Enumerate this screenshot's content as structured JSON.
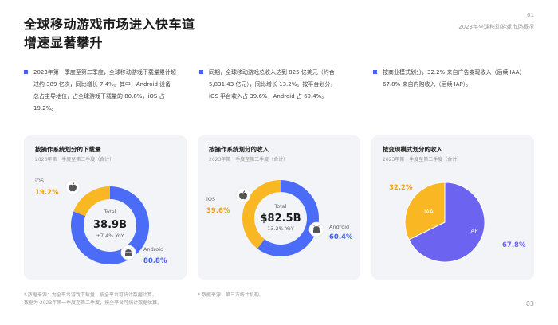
{
  "header": {
    "title_line1": "全球移动游戏市场进入快车道",
    "title_line2": "增速显著攀升",
    "page_no": "01",
    "subtitle": "2023年全球移动游戏市场概况"
  },
  "summary": [
    {
      "line1": "2023年第一季度至第二季度，全球移动游戏下载量累计超",
      "line2": "过约 389 亿次，同比增长 7.4%。其中，Android 设备",
      "line3": "总占主导地位，占全球游戏下载量的 80.8%，iOS 占 19.2%。"
    },
    {
      "line1": "同期，全球移动游戏总收入达到 825 亿美元（约合",
      "line2": "5,831.43 亿元），同比增长 13.2%。按平台划分，",
      "line3": "iOS 平台收入占 39.6%，Android 占 60.4%。"
    },
    {
      "line1": "按商业模式划分，32.2% 来自广告变现收入（后续 IAA）",
      "line2": "67.8% 来自内购收入（后续 IAP）。",
      "line3": ""
    }
  ],
  "notes": {
    "note1_line1": "* 数据来源：为全平台游戏下载量，按全平台可统计数据计算。",
    "note1_line2": "数据为 2023年第一季度至第二季度，按全平台可统计数据估算。",
    "note2": "* 数据来源：第三方统计机构。",
    "page_footer": "03"
  },
  "colors": {
    "blue": "#4a6cf7",
    "yellow": "#f9b823",
    "purple": "#6c63f0",
    "accent_label_blue": "#4361ee",
    "accent_label_orange": "#f0a30a"
  },
  "chart_data": [
    {
      "type": "pie",
      "title": "按操作系统划分的下载量",
      "subtitle": "2023年第一季度至第二季度（合计）",
      "donut": true,
      "center_label": "Total",
      "center_value": "38.9B",
      "center_change": "+7.4% YoY",
      "categories": [
        "Android",
        "iOS"
      ],
      "values": [
        80.8,
        19.2
      ],
      "value_labels": [
        "80.8%",
        "19.2%"
      ],
      "icons": [
        "android-icon",
        "apple-icon"
      ]
    },
    {
      "type": "pie",
      "title": "按操作系统划分的收入",
      "subtitle": "2023年第一季度至第二季度（合计）",
      "donut": true,
      "center_label": "Total",
      "center_value": "$82.5B",
      "center_change": "13.2% YoY",
      "categories": [
        "Android",
        "iOS"
      ],
      "values": [
        60.4,
        39.6
      ],
      "value_labels": [
        "60.4%",
        "39.6%"
      ],
      "icons": [
        "android-icon",
        "apple-icon"
      ]
    },
    {
      "type": "pie",
      "title": "按变现模式划分的收入",
      "subtitle": "2023年第一季度至第二季度（合计）",
      "donut": false,
      "categories": [
        "IAP",
        "IAA"
      ],
      "values": [
        67.8,
        32.2
      ],
      "value_labels": [
        "67.8%",
        "32.2%"
      ]
    }
  ]
}
